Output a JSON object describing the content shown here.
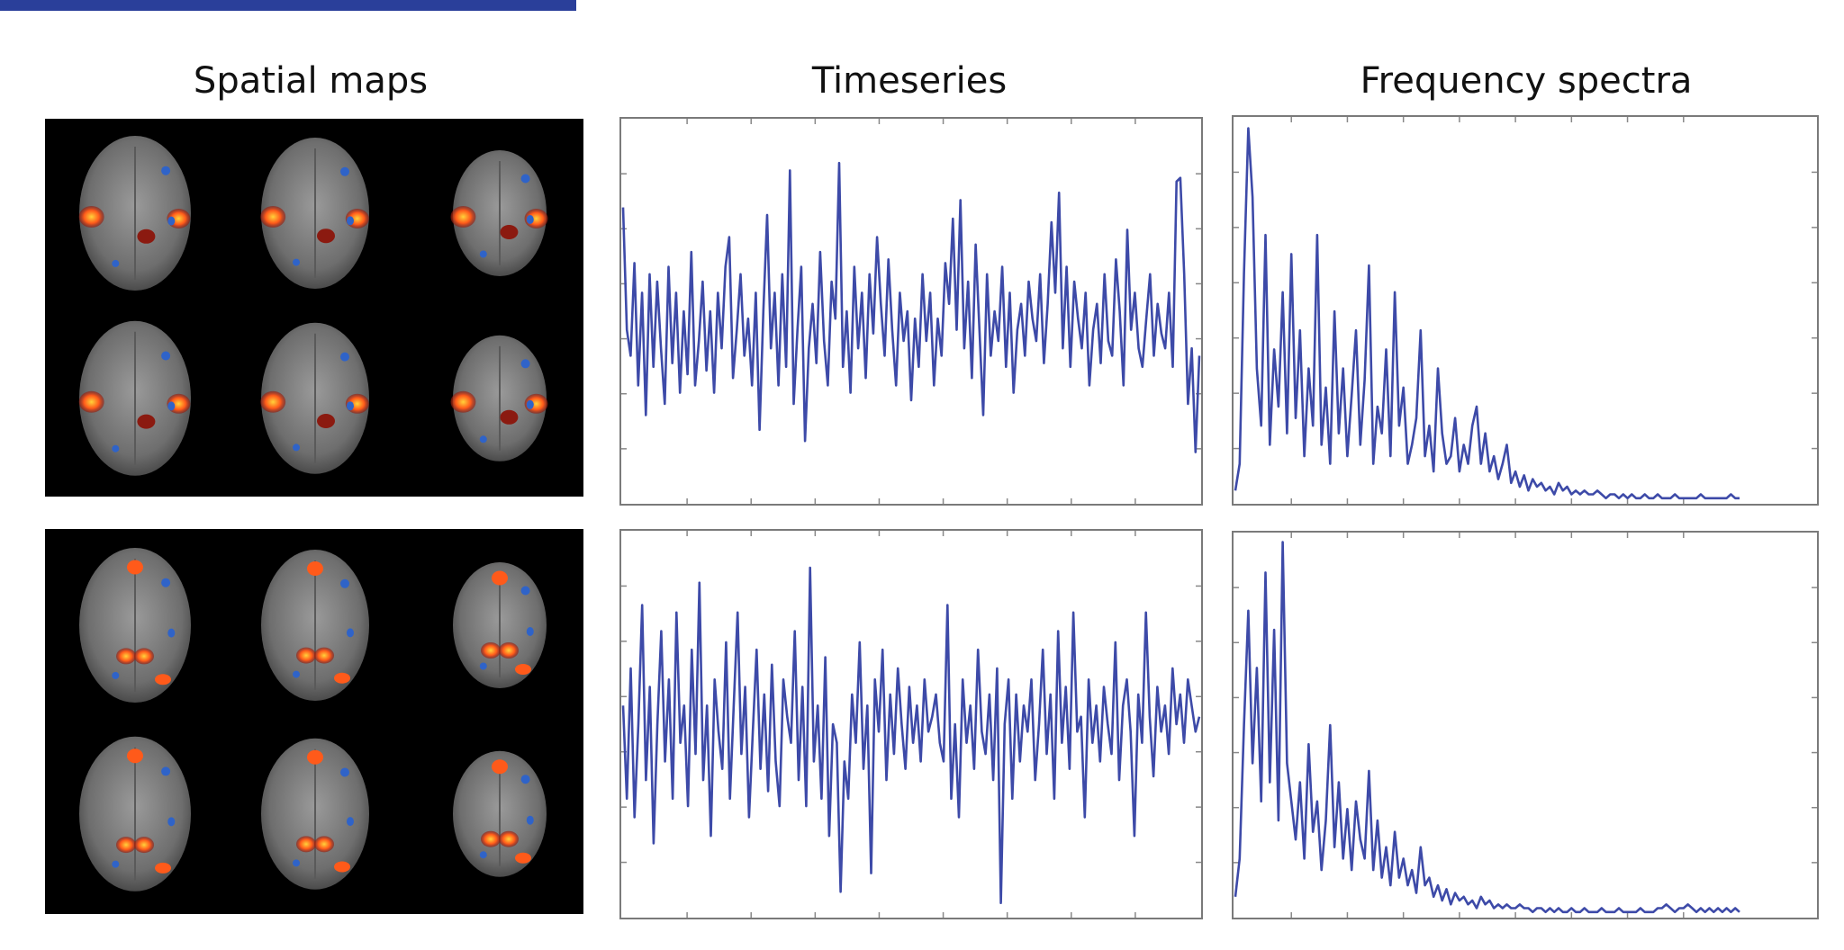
{
  "header": {
    "column_titles": [
      "Spatial maps",
      "Timeseries",
      "Frequency spectra"
    ]
  },
  "colors": {
    "line": "#3d4aa8",
    "panel_border": "#7a7a7a",
    "brain_bg": "#000000",
    "activation_hot": "#ffd23a",
    "activation_mid": "#ff5a1a",
    "activation_dark": "#8b1a10",
    "activation_blue": "#2f63c8"
  },
  "chart_data": [
    {
      "type": "line",
      "name": "component-1-timeseries",
      "title": "",
      "xlabel": "",
      "ylabel": "",
      "values": [
        0.78,
        0.45,
        0.38,
        0.63,
        0.3,
        0.55,
        0.22,
        0.6,
        0.35,
        0.58,
        0.4,
        0.25,
        0.62,
        0.36,
        0.55,
        0.28,
        0.5,
        0.33,
        0.66,
        0.3,
        0.42,
        0.58,
        0.34,
        0.5,
        0.28,
        0.55,
        0.4,
        0.62,
        0.7,
        0.32,
        0.45,
        0.6,
        0.38,
        0.48,
        0.3,
        0.55,
        0.18,
        0.5,
        0.76,
        0.4,
        0.55,
        0.3,
        0.6,
        0.35,
        0.88,
        0.25,
        0.45,
        0.62,
        0.15,
        0.4,
        0.52,
        0.36,
        0.66,
        0.42,
        0.3,
        0.58,
        0.48,
        0.9,
        0.35,
        0.5,
        0.28,
        0.62,
        0.4,
        0.55,
        0.32,
        0.6,
        0.44,
        0.7,
        0.52,
        0.38,
        0.64,
        0.45,
        0.3,
        0.55,
        0.42,
        0.5,
        0.26,
        0.48,
        0.35,
        0.6,
        0.42,
        0.55,
        0.3,
        0.48,
        0.38,
        0.63,
        0.52,
        0.75,
        0.45,
        0.8,
        0.4,
        0.58,
        0.32,
        0.68,
        0.45,
        0.22,
        0.6,
        0.38,
        0.5,
        0.42,
        0.62,
        0.35,
        0.55,
        0.28,
        0.45,
        0.52,
        0.38,
        0.58,
        0.48,
        0.42,
        0.6,
        0.36,
        0.52,
        0.74,
        0.55,
        0.82,
        0.4,
        0.62,
        0.35,
        0.58,
        0.48,
        0.4,
        0.55,
        0.3,
        0.45,
        0.52,
        0.36,
        0.6,
        0.42,
        0.38,
        0.64,
        0.5,
        0.3,
        0.72,
        0.45,
        0.55,
        0.4,
        0.35,
        0.48,
        0.6,
        0.38,
        0.52,
        0.44,
        0.4,
        0.55,
        0.35,
        0.85,
        0.86,
        0.6,
        0.25,
        0.4,
        0.12,
        0.38
      ],
      "ylim": [
        0,
        1
      ]
    },
    {
      "type": "line",
      "name": "component-1-spectrum",
      "title": "",
      "xlabel": "",
      "ylabel": "",
      "values": [
        0.03,
        0.1,
        0.6,
        0.98,
        0.8,
        0.35,
        0.2,
        0.7,
        0.15,
        0.4,
        0.25,
        0.55,
        0.18,
        0.65,
        0.22,
        0.45,
        0.12,
        0.35,
        0.2,
        0.7,
        0.15,
        0.3,
        0.1,
        0.5,
        0.18,
        0.35,
        0.12,
        0.28,
        0.45,
        0.15,
        0.32,
        0.62,
        0.1,
        0.25,
        0.18,
        0.4,
        0.12,
        0.55,
        0.2,
        0.3,
        0.1,
        0.15,
        0.22,
        0.45,
        0.12,
        0.2,
        0.08,
        0.35,
        0.18,
        0.1,
        0.12,
        0.22,
        0.08,
        0.15,
        0.1,
        0.2,
        0.25,
        0.1,
        0.18,
        0.08,
        0.12,
        0.06,
        0.1,
        0.15,
        0.05,
        0.08,
        0.04,
        0.07,
        0.03,
        0.06,
        0.04,
        0.05,
        0.03,
        0.04,
        0.02,
        0.05,
        0.03,
        0.04,
        0.02,
        0.03,
        0.02,
        0.03,
        0.02,
        0.02,
        0.03,
        0.02,
        0.01,
        0.02,
        0.02,
        0.01,
        0.02,
        0.01,
        0.02,
        0.01,
        0.01,
        0.02,
        0.01,
        0.01,
        0.02,
        0.01,
        0.01,
        0.01,
        0.02,
        0.01,
        0.01,
        0.01,
        0.01,
        0.01,
        0.02,
        0.01,
        0.01,
        0.01,
        0.01,
        0.01,
        0.01,
        0.02,
        0.01,
        0.01
      ],
      "ylim": [
        0,
        1
      ]
    },
    {
      "type": "line",
      "name": "component-2-timeseries",
      "title": "",
      "xlabel": "",
      "ylabel": "",
      "values": [
        0.55,
        0.3,
        0.65,
        0.25,
        0.5,
        0.82,
        0.35,
        0.6,
        0.18,
        0.5,
        0.75,
        0.4,
        0.62,
        0.3,
        0.8,
        0.45,
        0.55,
        0.28,
        0.7,
        0.42,
        0.88,
        0.35,
        0.55,
        0.2,
        0.62,
        0.48,
        0.38,
        0.72,
        0.3,
        0.55,
        0.8,
        0.42,
        0.6,
        0.25,
        0.48,
        0.7,
        0.38,
        0.58,
        0.32,
        0.66,
        0.4,
        0.28,
        0.62,
        0.52,
        0.45,
        0.75,
        0.35,
        0.6,
        0.28,
        0.92,
        0.4,
        0.55,
        0.3,
        0.68,
        0.2,
        0.5,
        0.45,
        0.05,
        0.4,
        0.3,
        0.58,
        0.45,
        0.72,
        0.38,
        0.55,
        0.1,
        0.62,
        0.48,
        0.7,
        0.35,
        0.58,
        0.42,
        0.65,
        0.5,
        0.38,
        0.6,
        0.45,
        0.55,
        0.4,
        0.62,
        0.48,
        0.52,
        0.58,
        0.45,
        0.4,
        0.82,
        0.3,
        0.5,
        0.25,
        0.62,
        0.45,
        0.55,
        0.38,
        0.7,
        0.48,
        0.42,
        0.58,
        0.35,
        0.65,
        0.02,
        0.5,
        0.62,
        0.3,
        0.58,
        0.4,
        0.55,
        0.48,
        0.62,
        0.35,
        0.5,
        0.7,
        0.42,
        0.58,
        0.3,
        0.75,
        0.45,
        0.6,
        0.38,
        0.8,
        0.48,
        0.52,
        0.25,
        0.62,
        0.45,
        0.55,
        0.4,
        0.6,
        0.5,
        0.42,
        0.72,
        0.35,
        0.55,
        0.62,
        0.48,
        0.2,
        0.58,
        0.45,
        0.8,
        0.52,
        0.36,
        0.6,
        0.48,
        0.55,
        0.42,
        0.65,
        0.5,
        0.58,
        0.45,
        0.62,
        0.55,
        0.48,
        0.52
      ],
      "ylim": [
        0,
        1
      ]
    },
    {
      "type": "line",
      "name": "component-2-spectrum",
      "title": "",
      "xlabel": "",
      "ylabel": "",
      "values": [
        0.05,
        0.15,
        0.5,
        0.8,
        0.4,
        0.65,
        0.3,
        0.9,
        0.35,
        0.75,
        0.25,
        0.98,
        0.4,
        0.3,
        0.2,
        0.35,
        0.15,
        0.45,
        0.22,
        0.3,
        0.12,
        0.25,
        0.5,
        0.18,
        0.35,
        0.15,
        0.28,
        0.12,
        0.3,
        0.2,
        0.15,
        0.38,
        0.12,
        0.25,
        0.1,
        0.18,
        0.08,
        0.22,
        0.1,
        0.15,
        0.08,
        0.12,
        0.06,
        0.18,
        0.08,
        0.1,
        0.05,
        0.08,
        0.04,
        0.07,
        0.03,
        0.06,
        0.04,
        0.05,
        0.03,
        0.04,
        0.02,
        0.05,
        0.03,
        0.04,
        0.02,
        0.03,
        0.02,
        0.03,
        0.02,
        0.02,
        0.03,
        0.02,
        0.02,
        0.01,
        0.02,
        0.02,
        0.01,
        0.02,
        0.01,
        0.02,
        0.01,
        0.01,
        0.02,
        0.01,
        0.01,
        0.02,
        0.01,
        0.01,
        0.01,
        0.02,
        0.01,
        0.01,
        0.01,
        0.02,
        0.01,
        0.01,
        0.01,
        0.01,
        0.02,
        0.01,
        0.01,
        0.01,
        0.02,
        0.02,
        0.03,
        0.02,
        0.01,
        0.02,
        0.02,
        0.03,
        0.02,
        0.01,
        0.02,
        0.01,
        0.02,
        0.01,
        0.02,
        0.01,
        0.02,
        0.01,
        0.02,
        0.01
      ],
      "ylim": [
        0,
        1
      ]
    }
  ]
}
